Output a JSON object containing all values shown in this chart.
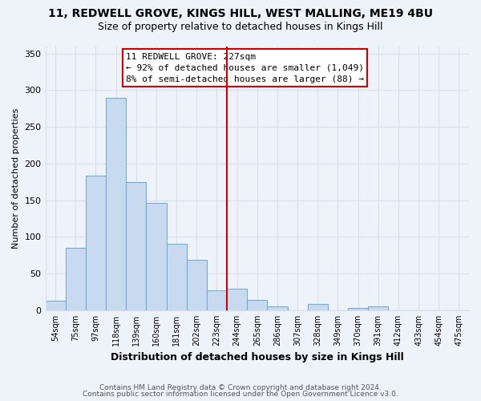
{
  "title": "11, REDWELL GROVE, KINGS HILL, WEST MALLING, ME19 4BU",
  "subtitle": "Size of property relative to detached houses in Kings Hill",
  "xlabel": "Distribution of detached houses by size in Kings Hill",
  "ylabel": "Number of detached properties",
  "bar_color": "#c8daf0",
  "bar_edge_color": "#7aaad0",
  "bin_labels": [
    "54sqm",
    "75sqm",
    "97sqm",
    "118sqm",
    "139sqm",
    "160sqm",
    "181sqm",
    "202sqm",
    "223sqm",
    "244sqm",
    "265sqm",
    "286sqm",
    "307sqm",
    "328sqm",
    "349sqm",
    "370sqm",
    "391sqm",
    "412sqm",
    "433sqm",
    "454sqm",
    "475sqm"
  ],
  "bar_heights": [
    13,
    85,
    184,
    289,
    175,
    146,
    91,
    69,
    27,
    29,
    14,
    5,
    0,
    9,
    0,
    3,
    5,
    0,
    0,
    0,
    0
  ],
  "annotation_box_text": "11 REDWELL GROVE: 227sqm\n← 92% of detached houses are smaller (1,049)\n8% of semi-detached houses are larger (88) →",
  "ylim": [
    0,
    360
  ],
  "yticks": [
    0,
    50,
    100,
    150,
    200,
    250,
    300,
    350
  ],
  "vline_color": "#cc0000",
  "vline_x_index": 8,
  "footnote1": "Contains HM Land Registry data © Crown copyright and database right 2024.",
  "footnote2": "Contains public sector information licensed under the Open Government Licence v3.0.",
  "background_color": "#eef2f9",
  "grid_color": "#d8e0ec"
}
